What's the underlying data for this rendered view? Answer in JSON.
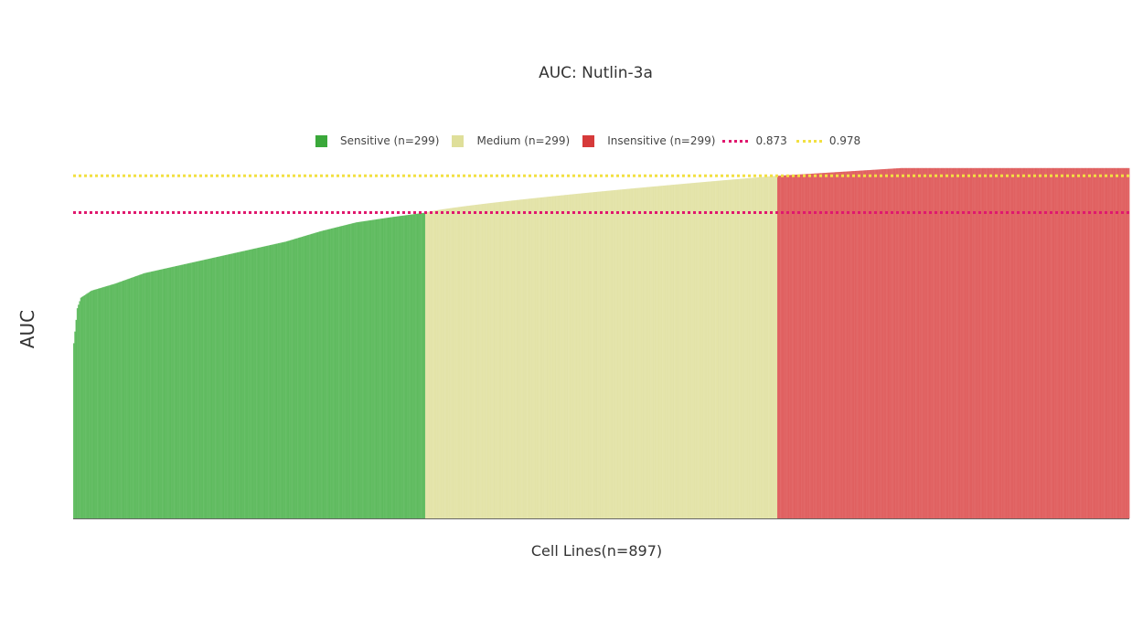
{
  "chart_data": {
    "type": "bar",
    "title": "AUC: Nutlin-3a",
    "xlabel": "Cell Lines(n=897)",
    "ylabel": "AUC",
    "n": 897,
    "ylim": [
      0,
      1.01
    ],
    "grid": false,
    "legend_placement": "top-center",
    "groups": [
      {
        "name": "Sensitive (n=299)",
        "count": 299,
        "color": "#5fbb5f",
        "legend_color": "#3aa83a",
        "start_auc": 0.5,
        "end_auc": 0.873
      },
      {
        "name": "Medium (n=299)",
        "count": 299,
        "color": "#e3e3a8",
        "legend_color": "#dfdf9a",
        "start_auc": 0.873,
        "end_auc": 0.978
      },
      {
        "name": "Insensitive (n=299)",
        "count": 299,
        "color": "#e06060",
        "legend_color": "#d63a3a",
        "start_auc": 0.978,
        "end_auc": 1.0
      }
    ],
    "sensitive_curve": [
      [
        0,
        0.5
      ],
      [
        3,
        0.6
      ],
      [
        6,
        0.63
      ],
      [
        15,
        0.65
      ],
      [
        35,
        0.67
      ],
      [
        60,
        0.7
      ],
      [
        100,
        0.73
      ],
      [
        140,
        0.76
      ],
      [
        180,
        0.79
      ],
      [
        210,
        0.82
      ],
      [
        240,
        0.845
      ],
      [
        270,
        0.86
      ],
      [
        299,
        0.873
      ]
    ],
    "thresholds": [
      {
        "label": "0.873",
        "value": 0.873,
        "color": "#e0186e"
      },
      {
        "label": "0.978",
        "value": 0.978,
        "color": "#f2e042"
      }
    ]
  }
}
